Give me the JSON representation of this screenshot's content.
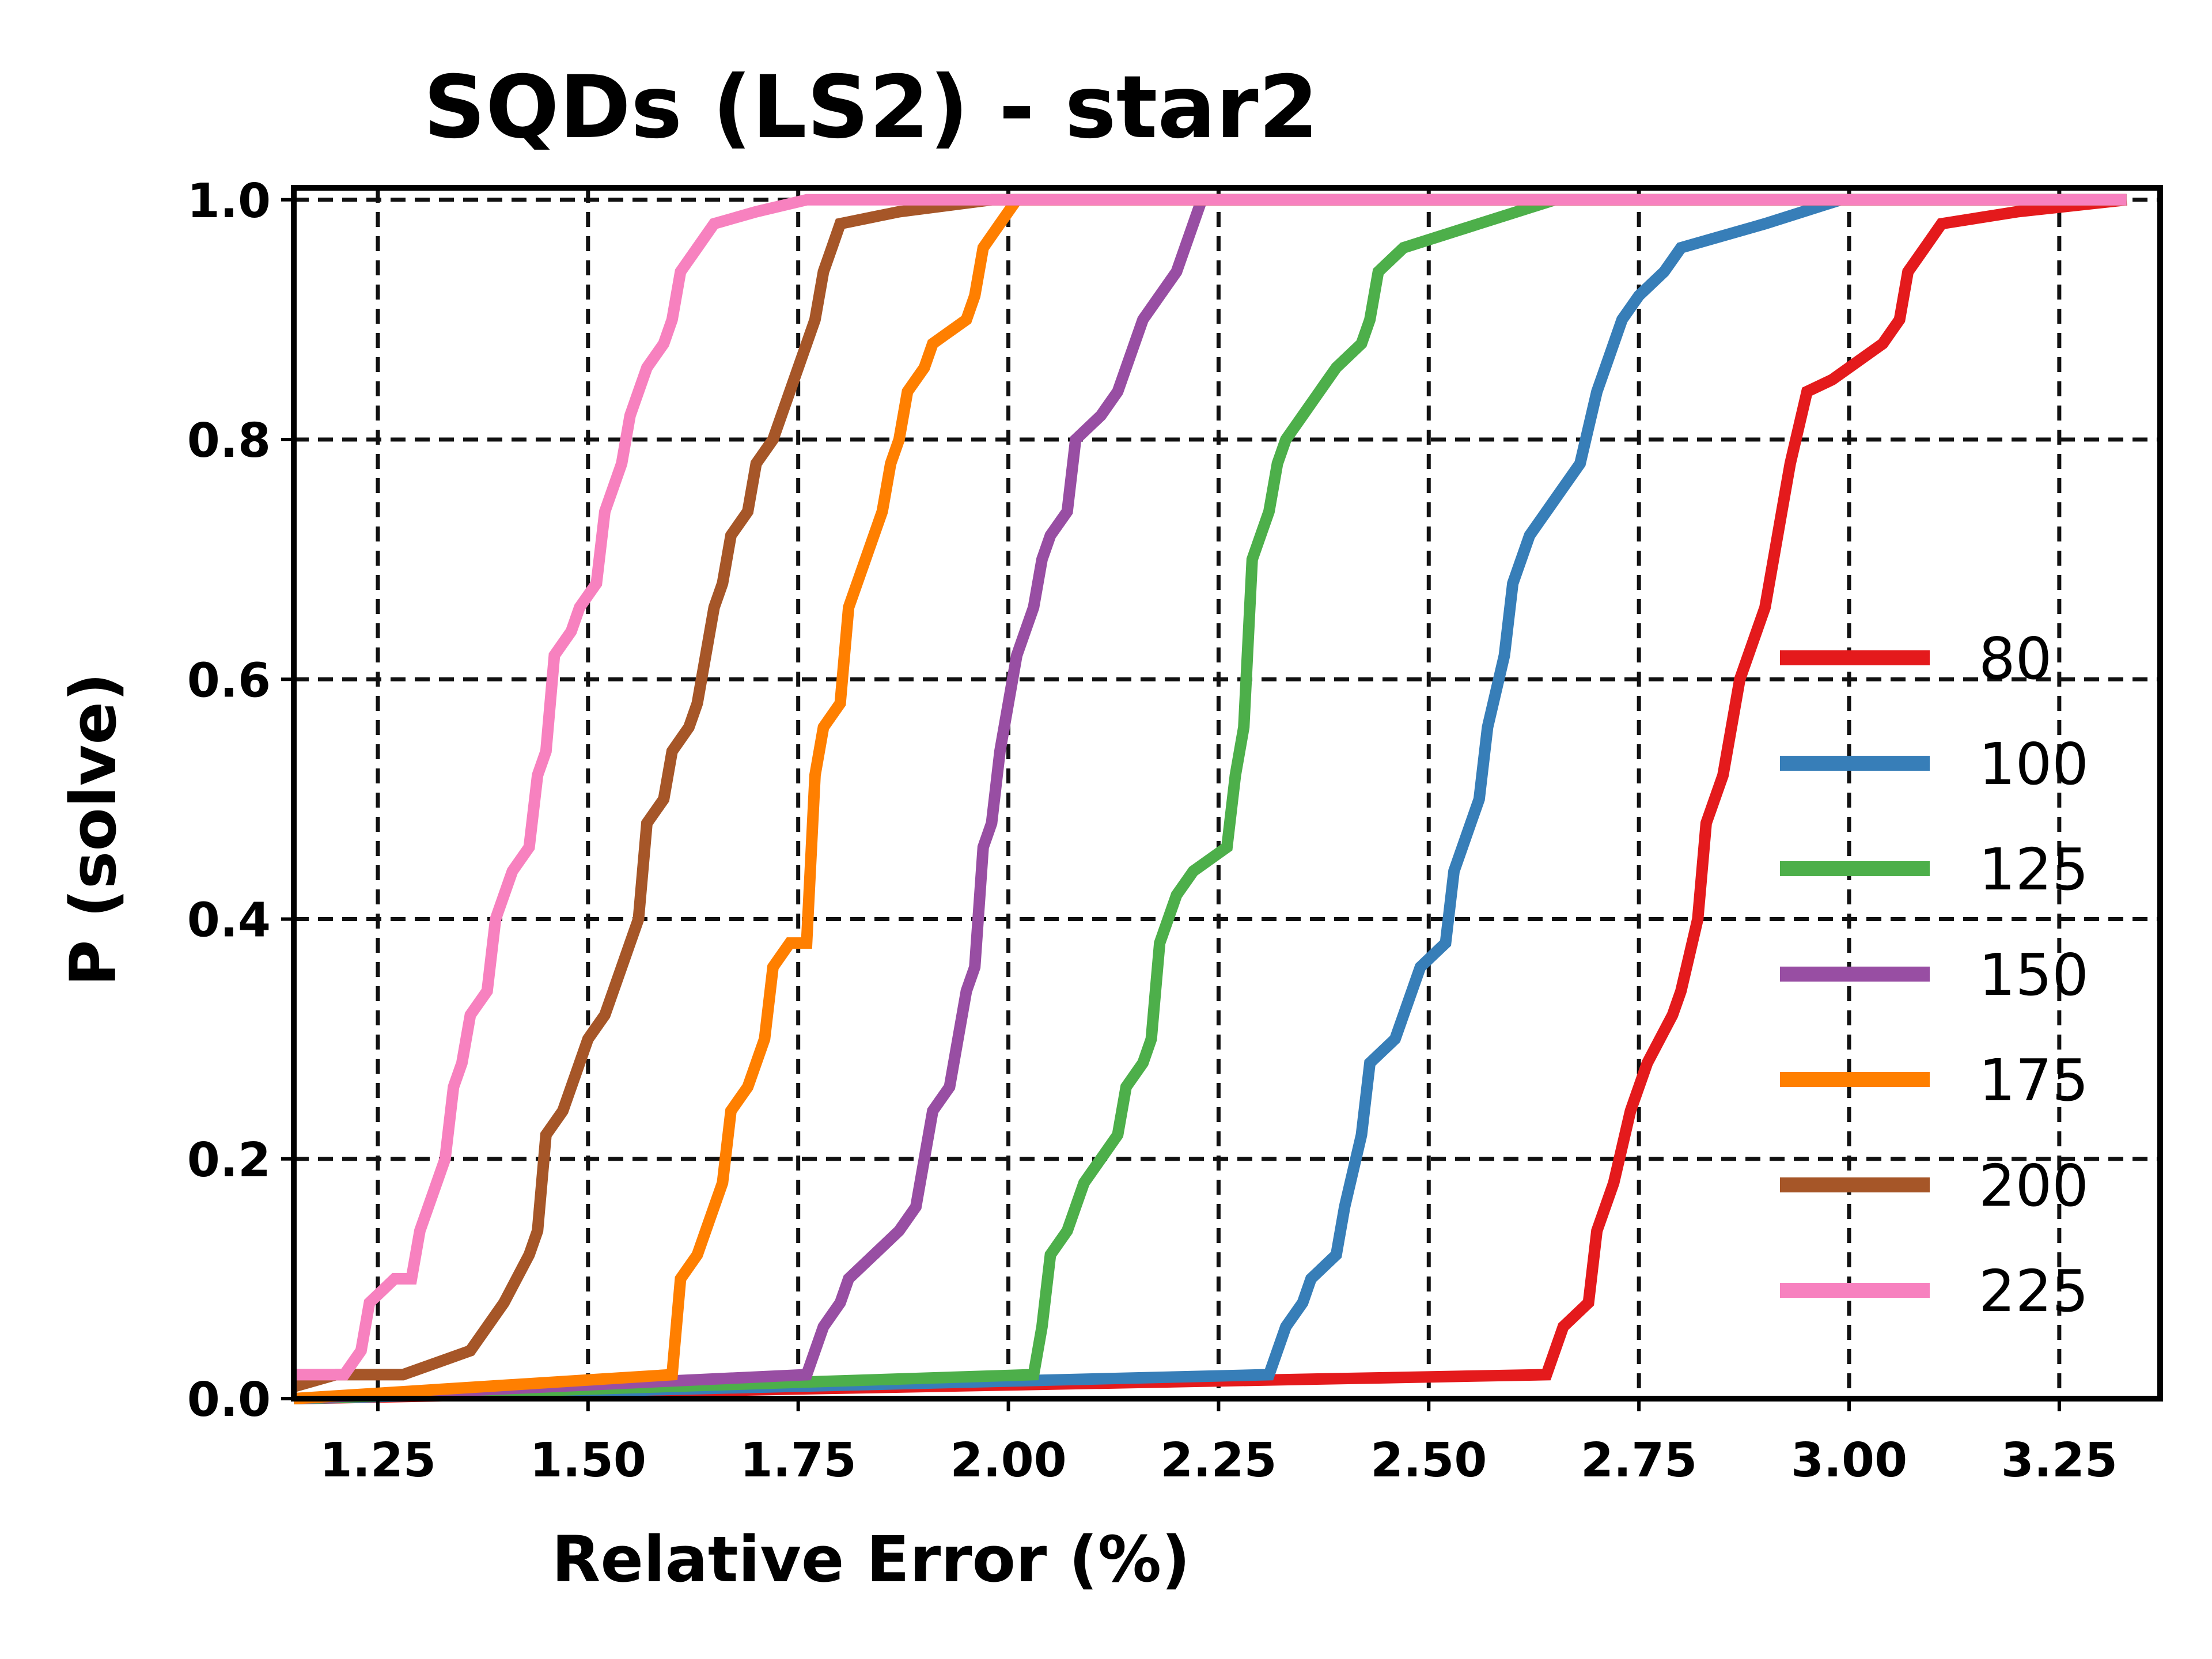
{
  "chart_data": {
    "type": "line",
    "title": "SQDs (LS2) - star2",
    "xlabel": "Relative Error (%)",
    "ylabel": "P (solve)",
    "xlim": [
      1.15,
      3.37
    ],
    "ylim": [
      0.0,
      1.01
    ],
    "xticks": [
      "1.25",
      "1.50",
      "1.75",
      "2.00",
      "2.25",
      "2.50",
      "2.75",
      "3.00",
      "3.25"
    ],
    "yticks": [
      "0.0",
      "0.2",
      "0.4",
      "0.6",
      "0.8",
      "1.0"
    ],
    "grid": true,
    "legend_position": "right",
    "series": [
      {
        "name": "80",
        "color": "#e41a1c",
        "points": [
          [
            1.15,
            0.0
          ],
          [
            2.64,
            0.02
          ],
          [
            2.66,
            0.06
          ],
          [
            2.69,
            0.08
          ],
          [
            2.7,
            0.14
          ],
          [
            2.72,
            0.18
          ],
          [
            2.74,
            0.24
          ],
          [
            2.76,
            0.28
          ],
          [
            2.79,
            0.32
          ],
          [
            2.8,
            0.34
          ],
          [
            2.82,
            0.4
          ],
          [
            2.83,
            0.48
          ],
          [
            2.85,
            0.52
          ],
          [
            2.87,
            0.6
          ],
          [
            2.9,
            0.66
          ],
          [
            2.92,
            0.74
          ],
          [
            2.93,
            0.78
          ],
          [
            2.95,
            0.84
          ],
          [
            2.98,
            0.85
          ],
          [
            3.04,
            0.88
          ],
          [
            3.06,
            0.9
          ],
          [
            3.07,
            0.94
          ],
          [
            3.09,
            0.96
          ],
          [
            3.11,
            0.98
          ],
          [
            3.2,
            0.99
          ],
          [
            3.33,
            1.0
          ]
        ]
      },
      {
        "name": "100",
        "color": "#377eb8",
        "points": [
          [
            1.15,
            0.0
          ],
          [
            2.31,
            0.02
          ],
          [
            2.33,
            0.06
          ],
          [
            2.35,
            0.08
          ],
          [
            2.36,
            0.1
          ],
          [
            2.39,
            0.12
          ],
          [
            2.4,
            0.16
          ],
          [
            2.42,
            0.22
          ],
          [
            2.43,
            0.28
          ],
          [
            2.46,
            0.3
          ],
          [
            2.47,
            0.32
          ],
          [
            2.49,
            0.36
          ],
          [
            2.52,
            0.38
          ],
          [
            2.53,
            0.44
          ],
          [
            2.55,
            0.48
          ],
          [
            2.56,
            0.5
          ],
          [
            2.57,
            0.56
          ],
          [
            2.59,
            0.62
          ],
          [
            2.6,
            0.68
          ],
          [
            2.62,
            0.72
          ],
          [
            2.64,
            0.74
          ],
          [
            2.66,
            0.76
          ],
          [
            2.68,
            0.78
          ],
          [
            2.7,
            0.84
          ],
          [
            2.71,
            0.86
          ],
          [
            2.73,
            0.9
          ],
          [
            2.75,
            0.92
          ],
          [
            2.78,
            0.94
          ],
          [
            2.8,
            0.96
          ],
          [
            2.9,
            0.98
          ],
          [
            2.99,
            1.0
          ],
          [
            3.33,
            1.0
          ]
        ]
      },
      {
        "name": "125",
        "color": "#4daf4a",
        "points": [
          [
            1.15,
            0.0
          ],
          [
            2.03,
            0.02
          ],
          [
            2.04,
            0.06
          ],
          [
            2.05,
            0.12
          ],
          [
            2.07,
            0.14
          ],
          [
            2.08,
            0.16
          ],
          [
            2.09,
            0.18
          ],
          [
            2.11,
            0.2
          ],
          [
            2.13,
            0.22
          ],
          [
            2.14,
            0.26
          ],
          [
            2.16,
            0.28
          ],
          [
            2.17,
            0.3
          ],
          [
            2.18,
            0.38
          ],
          [
            2.2,
            0.42
          ],
          [
            2.22,
            0.44
          ],
          [
            2.26,
            0.46
          ],
          [
            2.27,
            0.52
          ],
          [
            2.28,
            0.56
          ],
          [
            2.29,
            0.7
          ],
          [
            2.3,
            0.72
          ],
          [
            2.31,
            0.74
          ],
          [
            2.32,
            0.78
          ],
          [
            2.33,
            0.8
          ],
          [
            2.35,
            0.82
          ],
          [
            2.37,
            0.84
          ],
          [
            2.39,
            0.86
          ],
          [
            2.42,
            0.88
          ],
          [
            2.43,
            0.9
          ],
          [
            2.44,
            0.94
          ],
          [
            2.47,
            0.96
          ],
          [
            2.56,
            0.98
          ],
          [
            2.65,
            1.0
          ],
          [
            3.33,
            1.0
          ]
        ]
      },
      {
        "name": "150",
        "color": "#984ea3",
        "points": [
          [
            1.15,
            0.0
          ],
          [
            1.76,
            0.02
          ],
          [
            1.78,
            0.06
          ],
          [
            1.8,
            0.08
          ],
          [
            1.81,
            0.1
          ],
          [
            1.84,
            0.12
          ],
          [
            1.87,
            0.14
          ],
          [
            1.89,
            0.16
          ],
          [
            1.9,
            0.2
          ],
          [
            1.91,
            0.24
          ],
          [
            1.93,
            0.26
          ],
          [
            1.94,
            0.3
          ],
          [
            1.95,
            0.34
          ],
          [
            1.96,
            0.36
          ],
          [
            1.97,
            0.46
          ],
          [
            1.98,
            0.48
          ],
          [
            1.99,
            0.54
          ],
          [
            2.0,
            0.58
          ],
          [
            2.01,
            0.62
          ],
          [
            2.02,
            0.64
          ],
          [
            2.03,
            0.66
          ],
          [
            2.04,
            0.7
          ],
          [
            2.05,
            0.72
          ],
          [
            2.07,
            0.74
          ],
          [
            2.08,
            0.8
          ],
          [
            2.11,
            0.82
          ],
          [
            2.13,
            0.84
          ],
          [
            2.14,
            0.86
          ],
          [
            2.15,
            0.88
          ],
          [
            2.16,
            0.9
          ],
          [
            2.18,
            0.92
          ],
          [
            2.2,
            0.94
          ],
          [
            2.21,
            0.96
          ],
          [
            2.22,
            0.98
          ],
          [
            2.23,
            1.0
          ],
          [
            3.33,
            1.0
          ]
        ]
      },
      {
        "name": "175",
        "color": "#ff7f00",
        "points": [
          [
            1.15,
            0.0
          ],
          [
            1.6,
            0.02
          ],
          [
            1.61,
            0.1
          ],
          [
            1.63,
            0.12
          ],
          [
            1.64,
            0.14
          ],
          [
            1.66,
            0.18
          ],
          [
            1.67,
            0.24
          ],
          [
            1.69,
            0.26
          ],
          [
            1.7,
            0.28
          ],
          [
            1.71,
            0.3
          ],
          [
            1.72,
            0.36
          ],
          [
            1.74,
            0.38
          ],
          [
            1.76,
            0.38
          ],
          [
            1.77,
            0.52
          ],
          [
            1.78,
            0.56
          ],
          [
            1.8,
            0.58
          ],
          [
            1.81,
            0.66
          ],
          [
            1.83,
            0.7
          ],
          [
            1.84,
            0.72
          ],
          [
            1.85,
            0.74
          ],
          [
            1.86,
            0.78
          ],
          [
            1.87,
            0.8
          ],
          [
            1.88,
            0.84
          ],
          [
            1.9,
            0.86
          ],
          [
            1.91,
            0.88
          ],
          [
            1.93,
            0.89
          ],
          [
            1.95,
            0.9
          ],
          [
            1.96,
            0.92
          ],
          [
            1.97,
            0.96
          ],
          [
            1.99,
            0.98
          ],
          [
            2.01,
            1.0
          ],
          [
            3.33,
            1.0
          ]
        ]
      },
      {
        "name": "200",
        "color": "#a65628",
        "points": [
          [
            1.15,
            0.01
          ],
          [
            1.2,
            0.02
          ],
          [
            1.28,
            0.02
          ],
          [
            1.36,
            0.04
          ],
          [
            1.4,
            0.08
          ],
          [
            1.43,
            0.12
          ],
          [
            1.44,
            0.14
          ],
          [
            1.45,
            0.22
          ],
          [
            1.47,
            0.24
          ],
          [
            1.48,
            0.26
          ],
          [
            1.49,
            0.28
          ],
          [
            1.5,
            0.3
          ],
          [
            1.52,
            0.32
          ],
          [
            1.54,
            0.36
          ],
          [
            1.55,
            0.38
          ],
          [
            1.56,
            0.4
          ],
          [
            1.57,
            0.48
          ],
          [
            1.59,
            0.5
          ],
          [
            1.6,
            0.54
          ],
          [
            1.62,
            0.56
          ],
          [
            1.63,
            0.58
          ],
          [
            1.64,
            0.62
          ],
          [
            1.65,
            0.66
          ],
          [
            1.66,
            0.68
          ],
          [
            1.67,
            0.72
          ],
          [
            1.69,
            0.74
          ],
          [
            1.7,
            0.78
          ],
          [
            1.72,
            0.8
          ],
          [
            1.73,
            0.82
          ],
          [
            1.74,
            0.84
          ],
          [
            1.75,
            0.86
          ],
          [
            1.76,
            0.88
          ],
          [
            1.77,
            0.9
          ],
          [
            1.78,
            0.94
          ],
          [
            1.79,
            0.96
          ],
          [
            1.8,
            0.98
          ],
          [
            1.87,
            0.99
          ],
          [
            1.98,
            1.0
          ],
          [
            3.33,
            1.0
          ]
        ]
      },
      {
        "name": "225",
        "color": "#f781bf",
        "points": [
          [
            1.15,
            0.02
          ],
          [
            1.21,
            0.02
          ],
          [
            1.23,
            0.04
          ],
          [
            1.24,
            0.08
          ],
          [
            1.27,
            0.1
          ],
          [
            1.29,
            0.1
          ],
          [
            1.3,
            0.14
          ],
          [
            1.31,
            0.16
          ],
          [
            1.32,
            0.18
          ],
          [
            1.33,
            0.2
          ],
          [
            1.34,
            0.26
          ],
          [
            1.35,
            0.28
          ],
          [
            1.36,
            0.32
          ],
          [
            1.38,
            0.34
          ],
          [
            1.39,
            0.4
          ],
          [
            1.4,
            0.42
          ],
          [
            1.41,
            0.44
          ],
          [
            1.43,
            0.46
          ],
          [
            1.44,
            0.52
          ],
          [
            1.45,
            0.54
          ],
          [
            1.46,
            0.62
          ],
          [
            1.48,
            0.64
          ],
          [
            1.49,
            0.66
          ],
          [
            1.51,
            0.68
          ],
          [
            1.52,
            0.74
          ],
          [
            1.53,
            0.76
          ],
          [
            1.54,
            0.78
          ],
          [
            1.55,
            0.82
          ],
          [
            1.56,
            0.84
          ],
          [
            1.57,
            0.86
          ],
          [
            1.59,
            0.88
          ],
          [
            1.6,
            0.9
          ],
          [
            1.61,
            0.94
          ],
          [
            1.63,
            0.96
          ],
          [
            1.65,
            0.98
          ],
          [
            1.7,
            0.99
          ],
          [
            1.76,
            1.0
          ],
          [
            3.33,
            1.0
          ]
        ]
      }
    ]
  }
}
